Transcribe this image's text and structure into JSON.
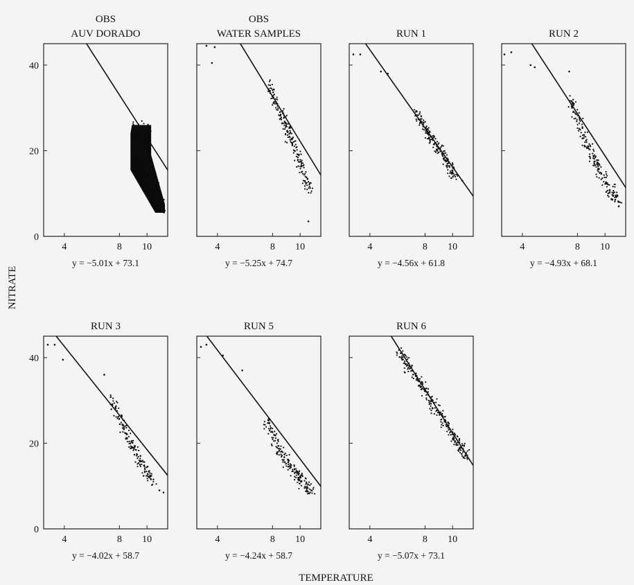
{
  "figure": {
    "xlabel": "TEMPERATURE",
    "ylabel": "NITRATE"
  },
  "chart_data": [
    {
      "type": "scatter",
      "title": [
        "OBS",
        "AUV DORADO"
      ],
      "fit_label": "y = −5.01x + 73.1",
      "fit": {
        "slope": -5.01,
        "intercept": 73.1
      },
      "xlim": [
        2.5,
        11.5
      ],
      "ylim": [
        0,
        45
      ],
      "xticks": [
        4,
        8,
        10
      ],
      "yticks": [
        0,
        20,
        40
      ],
      "dense": true,
      "points": [
        [
          8.9,
          25.5
        ],
        [
          9.2,
          26
        ],
        [
          9.6,
          25.8
        ],
        [
          10.2,
          25.6
        ],
        [
          8.9,
          22
        ],
        [
          9.3,
          20
        ],
        [
          9.7,
          19
        ],
        [
          10.1,
          17
        ],
        [
          10.4,
          14
        ],
        [
          10.8,
          11
        ],
        [
          11.1,
          7
        ],
        [
          11.2,
          6
        ]
      ]
    },
    {
      "type": "scatter",
      "title": [
        "OBS",
        "WATER SAMPLES"
      ],
      "fit_label": "y = −5.25x + 74.7",
      "fit": {
        "slope": -5.25,
        "intercept": 74.7
      },
      "xlim": [
        2.5,
        11.5
      ],
      "ylim": [
        0,
        45
      ],
      "xticks": [
        4,
        8,
        10
      ],
      "yticks": [
        0,
        20,
        40
      ],
      "outliers": [
        [
          3.2,
          44.5
        ],
        [
          3.8,
          44.2
        ],
        [
          3.6,
          40.5
        ],
        [
          10.6,
          3.5
        ]
      ],
      "points": [
        [
          7.7,
          35
        ],
        [
          8.2,
          32
        ],
        [
          8.7,
          28
        ],
        [
          9.1,
          25
        ],
        [
          9.5,
          22
        ],
        [
          9.9,
          18
        ],
        [
          10.3,
          14
        ],
        [
          10.8,
          10
        ]
      ]
    },
    {
      "type": "scatter",
      "title": [
        "RUN 1"
      ],
      "fit_label": "y = −4.56x + 61.8",
      "fit": {
        "slope": -4.56,
        "intercept": 61.8
      },
      "xlim": [
        2.5,
        11.5
      ],
      "ylim": [
        0,
        45
      ],
      "xticks": [
        4,
        8,
        10
      ],
      "yticks": [
        0,
        20,
        40
      ],
      "outliers": [
        [
          2.8,
          42.5
        ],
        [
          3.3,
          42.5
        ],
        [
          4.8,
          38.5
        ],
        [
          5.3,
          38
        ],
        [
          10.7,
          13
        ]
      ],
      "points": [
        [
          7.4,
          29
        ],
        [
          7.8,
          26.5
        ],
        [
          8.3,
          23.5
        ],
        [
          8.8,
          21
        ],
        [
          9.3,
          19
        ],
        [
          9.8,
          16
        ],
        [
          10.2,
          14
        ]
      ]
    },
    {
      "type": "scatter",
      "title": [
        "RUN 2"
      ],
      "fit_label": "y = −4.93x + 68.1",
      "fit": {
        "slope": -4.93,
        "intercept": 68.1
      },
      "xlim": [
        2.5,
        11.5
      ],
      "ylim": [
        0,
        45
      ],
      "xticks": [
        4,
        8,
        10
      ],
      "yticks": [
        0,
        20,
        40
      ],
      "outliers": [
        [
          2.7,
          42.5
        ],
        [
          3.2,
          43
        ],
        [
          4.6,
          40
        ],
        [
          4.9,
          39.5
        ],
        [
          7.4,
          38.5
        ]
      ],
      "points": [
        [
          7.5,
          32
        ],
        [
          8.0,
          28
        ],
        [
          8.5,
          23
        ],
        [
          9.0,
          19
        ],
        [
          9.5,
          16.5
        ],
        [
          10.0,
          13
        ],
        [
          10.6,
          10
        ],
        [
          11.0,
          8
        ]
      ]
    },
    {
      "type": "scatter",
      "title": [
        "RUN 3"
      ],
      "fit_label": "y = −4.02x + 58.7",
      "fit": {
        "slope": -4.02,
        "intercept": 58.7
      },
      "xlim": [
        2.5,
        11.5
      ],
      "ylim": [
        0,
        45
      ],
      "xticks": [
        4,
        8,
        10
      ],
      "yticks": [
        0,
        20,
        40
      ],
      "outliers": [
        [
          2.8,
          43
        ],
        [
          3.3,
          43
        ],
        [
          3.9,
          39.5
        ],
        [
          10.9,
          9
        ],
        [
          11.2,
          8.5
        ],
        [
          6.9,
          36
        ]
      ],
      "points": [
        [
          7.4,
          30
        ],
        [
          8.0,
          26
        ],
        [
          8.5,
          22
        ],
        [
          9.0,
          19
        ],
        [
          9.5,
          16
        ],
        [
          10.0,
          13
        ],
        [
          10.5,
          11
        ]
      ]
    },
    {
      "type": "scatter",
      "title": [
        "RUN 5"
      ],
      "fit_label": "y = −4.24x + 58.7",
      "fit": {
        "slope": -4.24,
        "intercept": 58.7
      },
      "xlim": [
        2.5,
        11.5
      ],
      "ylim": [
        0,
        45
      ],
      "xticks": [
        4,
        8,
        10
      ],
      "yticks": [
        0,
        20,
        40
      ],
      "outliers": [
        [
          2.8,
          42.5
        ],
        [
          3.2,
          43
        ],
        [
          4.4,
          40.5
        ],
        [
          5.8,
          37
        ]
      ],
      "points": [
        [
          7.5,
          26
        ],
        [
          8.0,
          22
        ],
        [
          8.5,
          18.5
        ],
        [
          9.0,
          16
        ],
        [
          9.5,
          13.5
        ],
        [
          10.0,
          12
        ],
        [
          10.5,
          10
        ],
        [
          10.9,
          9
        ]
      ]
    },
    {
      "type": "scatter",
      "title": [
        "RUN 6"
      ],
      "fit_label": "y = −5.07x + 73.1",
      "fit": {
        "slope": -5.07,
        "intercept": 73.1
      },
      "xlim": [
        2.5,
        11.5
      ],
      "ylim": [
        0,
        45
      ],
      "xticks": [
        4,
        8,
        10
      ],
      "yticks": [
        0,
        20,
        40
      ],
      "points": [
        [
          6.0,
          42
        ],
        [
          6.6,
          39
        ],
        [
          7.2,
          36
        ],
        [
          7.8,
          33
        ],
        [
          8.4,
          30
        ],
        [
          9.0,
          27
        ],
        [
          9.6,
          24
        ],
        [
          10.2,
          21
        ],
        [
          10.6,
          19
        ],
        [
          11.0,
          17
        ]
      ]
    }
  ]
}
